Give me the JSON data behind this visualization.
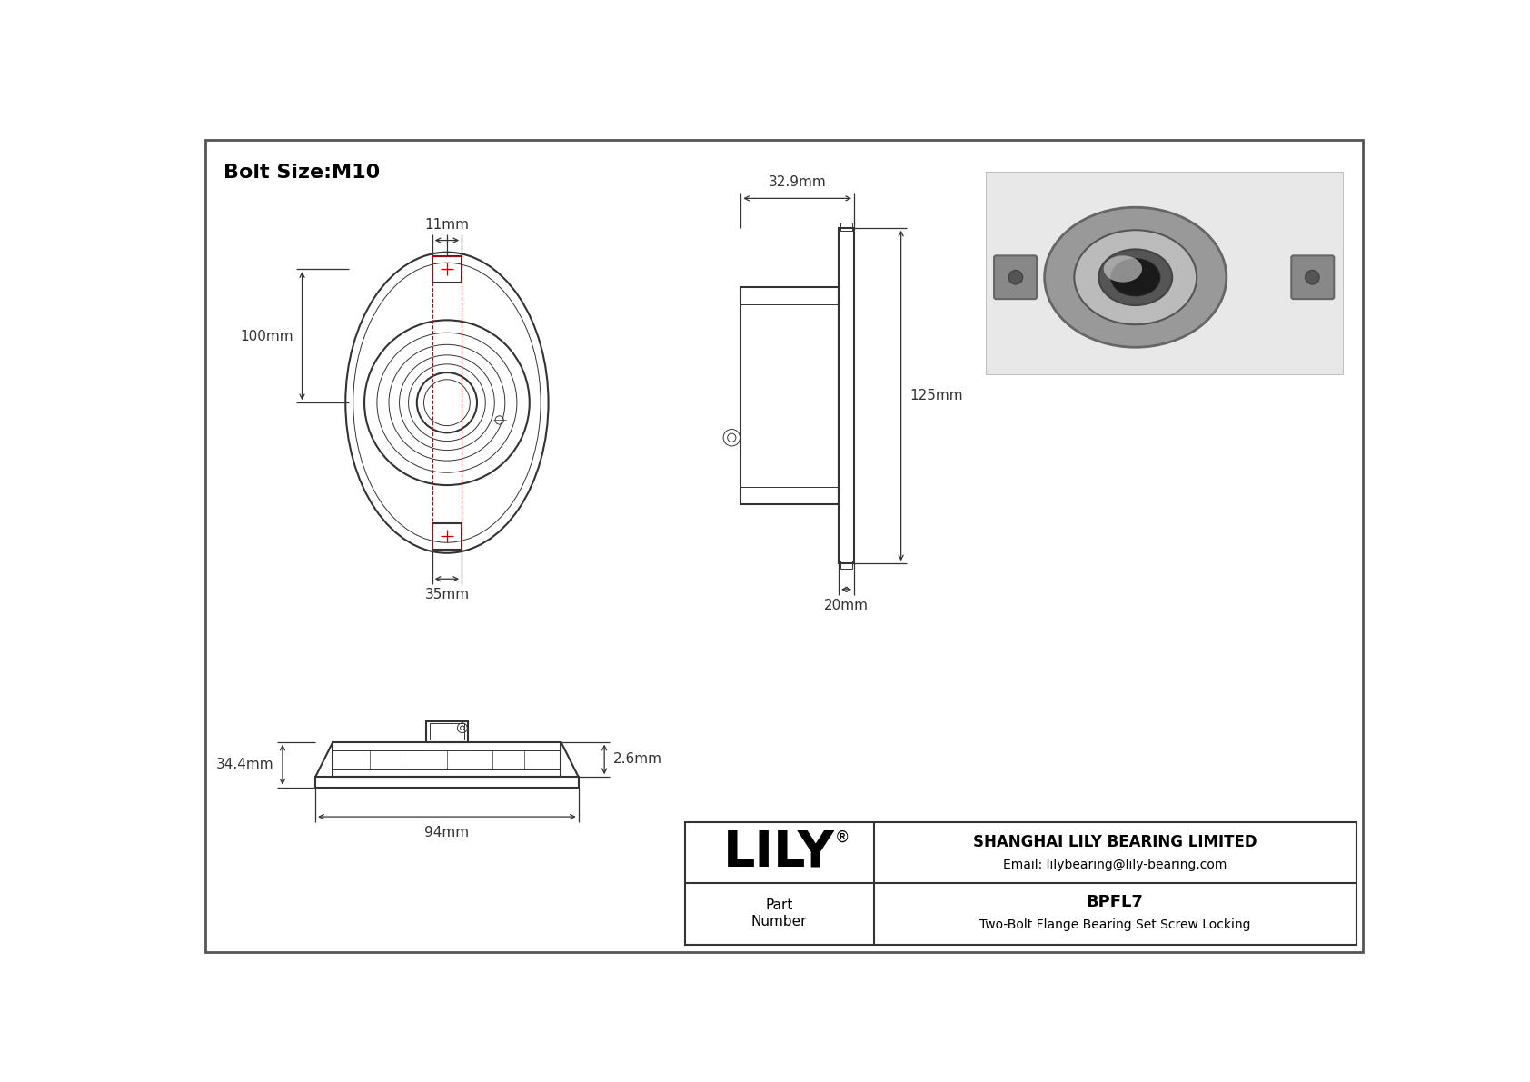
{
  "bg_color": "#ffffff",
  "line_color": "#333333",
  "dim_color": "#333333",
  "red_color": "#cc0000",
  "title": "Bolt Size:M10",
  "title_fontsize": 16,
  "dim_fontsize": 11,
  "lily_fontsize": 40,
  "company": "SHANGHAI LILY BEARING LIMITED",
  "email": "Email: lilybearing@lily-bearing.com",
  "part_label": "Part\nNumber",
  "part_number": "BPFL7",
  "part_desc": "Two-Bolt Flange Bearing Set Screw Locking",
  "dim_11mm": "11mm",
  "dim_100mm": "100mm",
  "dim_35mm": "35mm",
  "dim_329mm": "32.9mm",
  "dim_125mm": "125mm",
  "dim_20mm": "20mm",
  "dim_344mm": "34.4mm",
  "dim_26mm": "2.6mm",
  "dim_94mm": "94mm"
}
